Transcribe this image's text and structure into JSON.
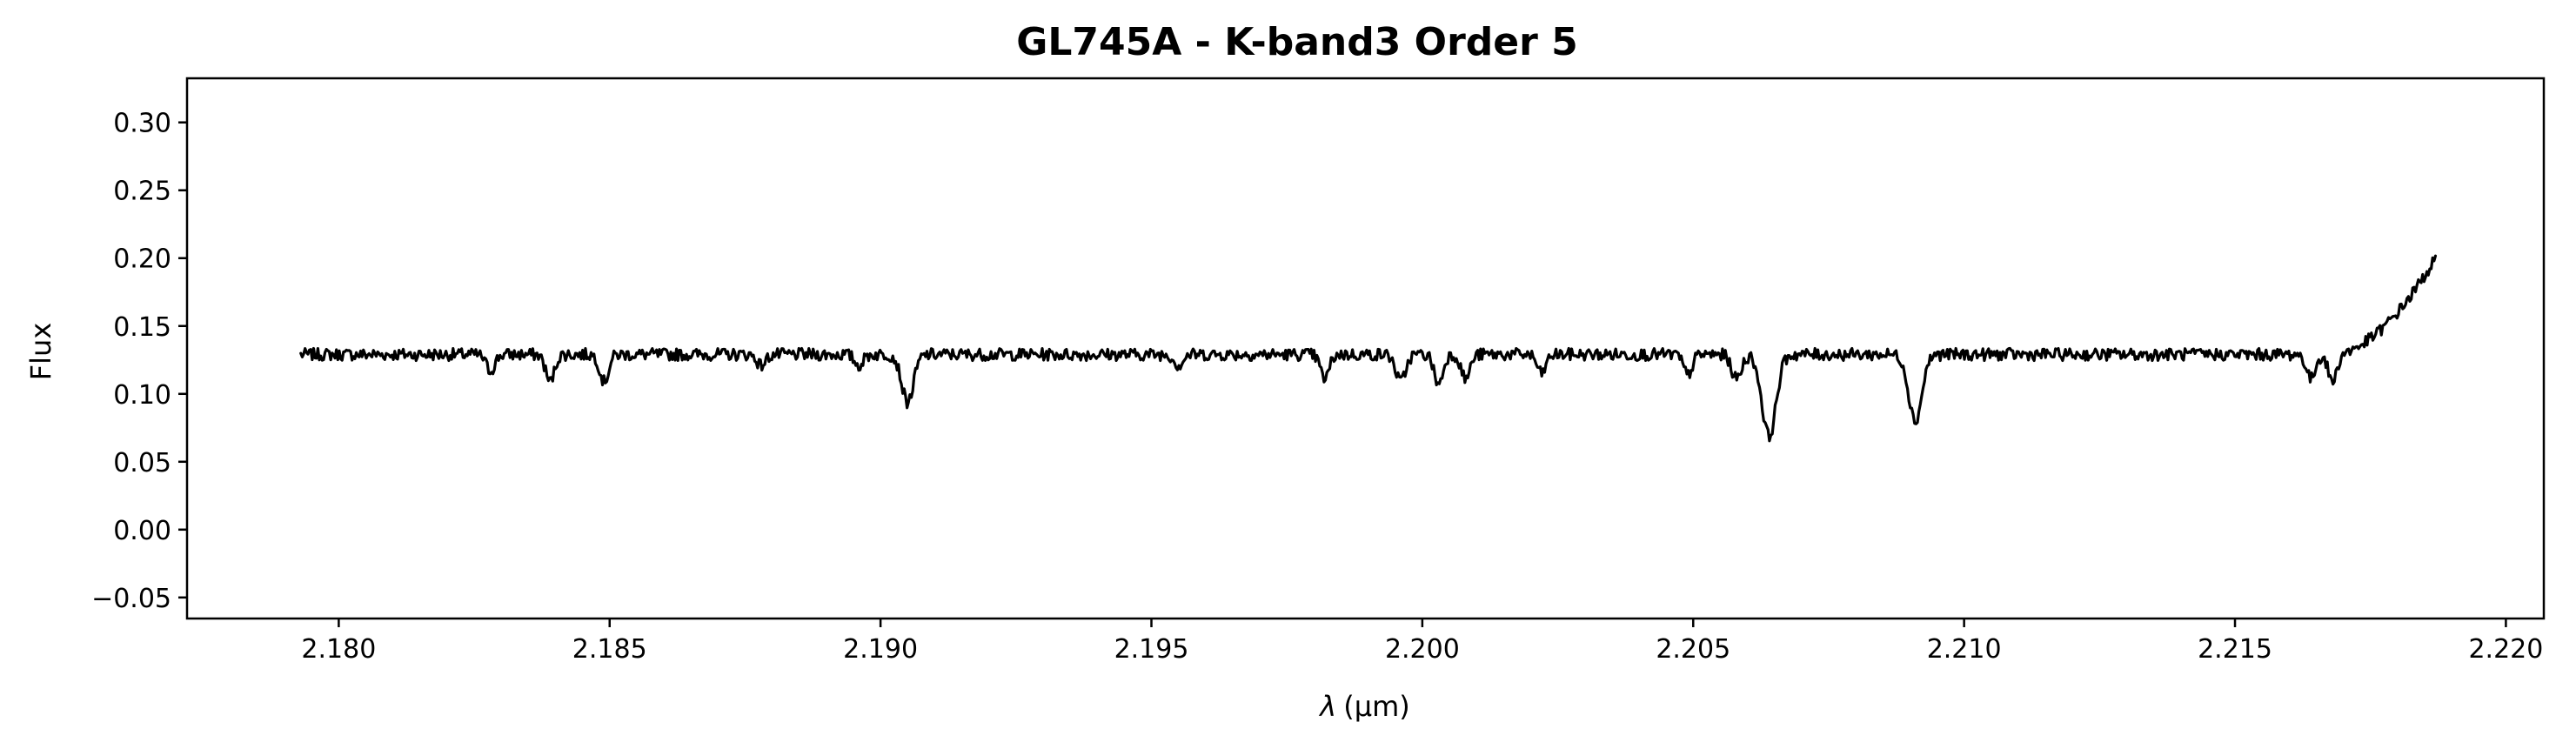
{
  "chart_data": {
    "type": "line",
    "title": "GL745A - K-band3 Order 5",
    "xlabel_symbol": "λ",
    "xlabel_unit": "(μm)",
    "ylabel": "Flux",
    "xlim": [
      2.1772,
      2.2207
    ],
    "ylim": [
      -0.0655,
      0.3325
    ],
    "xticks": [
      2.18,
      2.185,
      2.19,
      2.195,
      2.2,
      2.205,
      2.21,
      2.215,
      2.22
    ],
    "xtick_labels": [
      "2.180",
      "2.185",
      "2.190",
      "2.195",
      "2.200",
      "2.205",
      "2.210",
      "2.215",
      "2.220"
    ],
    "yticks": [
      -0.05,
      0.0,
      0.05,
      0.1,
      0.15,
      0.2,
      0.25,
      0.3
    ],
    "ytick_labels": [
      "−0.05",
      "0.00",
      "0.05",
      "0.10",
      "0.15",
      "0.20",
      "0.25",
      "0.30"
    ],
    "grid": false,
    "line_color": "#000000",
    "x_start": 2.1793,
    "x_end": 2.2187,
    "baseline_flux": 0.129,
    "absorption_lines": [
      {
        "x": 2.1828,
        "depth": 0.012,
        "width": 8e-05
      },
      {
        "x": 2.1839,
        "depth": 0.02,
        "width": 8e-05
      },
      {
        "x": 2.1849,
        "depth": 0.02,
        "width": 8e-05
      },
      {
        "x": 2.1878,
        "depth": 0.008,
        "width": 8e-05
      },
      {
        "x": 2.1896,
        "depth": 0.008,
        "width": 8e-05
      },
      {
        "x": 2.1905,
        "depth": 0.035,
        "width": 0.00011
      },
      {
        "x": 2.1955,
        "depth": 0.008,
        "width": 8e-05
      },
      {
        "x": 2.1982,
        "depth": 0.018,
        "width": 8e-05
      },
      {
        "x": 2.1996,
        "depth": 0.02,
        "width": 9e-05
      },
      {
        "x": 2.2003,
        "depth": 0.022,
        "width": 8e-05
      },
      {
        "x": 2.2008,
        "depth": 0.018,
        "width": 8e-05
      },
      {
        "x": 2.2022,
        "depth": 0.014,
        "width": 8e-05
      },
      {
        "x": 2.2049,
        "depth": 0.015,
        "width": 8e-05
      },
      {
        "x": 2.2058,
        "depth": 0.018,
        "width": 9e-05
      },
      {
        "x": 2.2064,
        "depth": 0.06,
        "width": 0.00013
      },
      {
        "x": 2.2091,
        "depth": 0.049,
        "width": 0.00012
      },
      {
        "x": 2.2164,
        "depth": 0.018,
        "width": 8e-05
      },
      {
        "x": 2.2168,
        "depth": 0.02,
        "width": 8e-05
      }
    ],
    "rise": {
      "start": 2.2168,
      "end_value": 0.2
    }
  }
}
